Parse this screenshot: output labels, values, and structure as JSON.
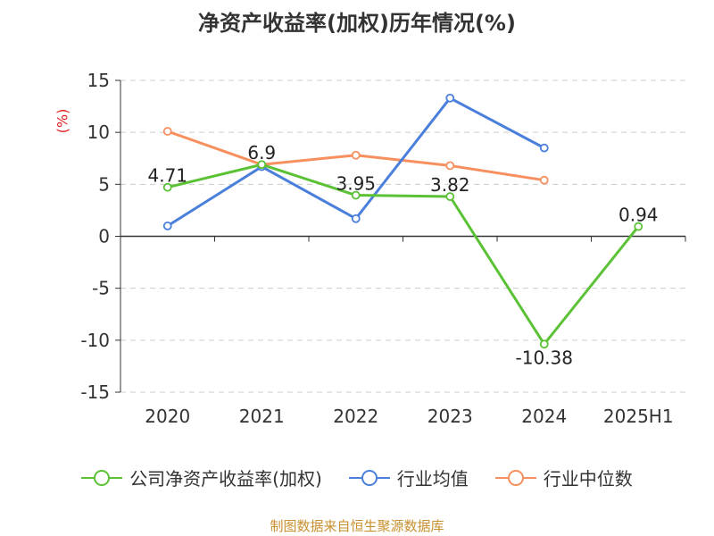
{
  "chart_data": {
    "type": "line",
    "title": "净资产收益率(加权)历年情况(%)",
    "ylabel": "(%)",
    "categories": [
      "2020",
      "2021",
      "2022",
      "2023",
      "2024",
      "2025H1"
    ],
    "ylim": [
      -15,
      15
    ],
    "yticks": [
      15,
      10,
      5,
      0,
      -5,
      -10,
      -15
    ],
    "grid": "horizontal-dashed",
    "legend_position": "bottom",
    "series": [
      {
        "name": "公司净资产收益率(加权)",
        "color": "#5bc236",
        "values": [
          4.71,
          6.9,
          3.95,
          3.82,
          -10.38,
          0.94
        ],
        "labels": [
          "4.71",
          "6.9",
          "3.95",
          "3.82",
          "-10.38",
          "0.94"
        ]
      },
      {
        "name": "行业均值",
        "color": "#4a7fdc",
        "values": [
          1.0,
          6.7,
          1.7,
          13.3,
          8.5,
          null
        ]
      },
      {
        "name": "行业中位数",
        "color": "#f78f5e",
        "values": [
          10.1,
          6.9,
          7.8,
          6.8,
          5.4,
          null
        ]
      }
    ]
  },
  "footer": {
    "source": "制图数据来自恒生聚源数据库"
  }
}
